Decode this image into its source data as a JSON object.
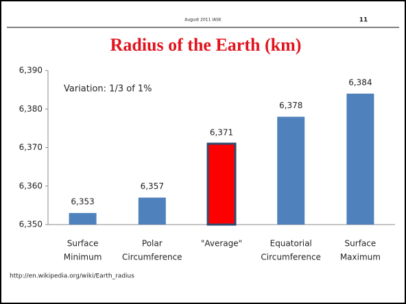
{
  "header": {
    "date": "August 2011 IASE",
    "page": "11"
  },
  "chart_data": {
    "type": "bar",
    "title": "Radius of the Earth (km)",
    "annotation": "Variation: 1/3 of 1%",
    "source": "http://en.wikipedia.org/wiki/Earth_radius",
    "categories": [
      [
        "Surface",
        "Minimum"
      ],
      [
        "Polar",
        "Circumference"
      ],
      [
        "\"Average\""
      ],
      [
        "Equatorial",
        "Circumference"
      ],
      [
        "Surface",
        "Maximum"
      ]
    ],
    "values": [
      6353,
      6357,
      6371,
      6378,
      6384
    ],
    "value_labels": [
      "6,353",
      "6,357",
      "6,371",
      "6,378",
      "6,384"
    ],
    "colors": [
      "#4f81bd",
      "#4f81bd",
      "#ff0000",
      "#4f81bd",
      "#4f81bd"
    ],
    "ylim": [
      6350,
      6390
    ],
    "yticks": [
      {
        "value": 6350,
        "label": "6,350"
      },
      {
        "value": 6360,
        "label": "6,360"
      },
      {
        "value": 6370,
        "label": "6,370"
      },
      {
        "value": 6380,
        "label": "6,380"
      },
      {
        "value": 6390,
        "label": "6,390"
      }
    ],
    "grid": false
  }
}
